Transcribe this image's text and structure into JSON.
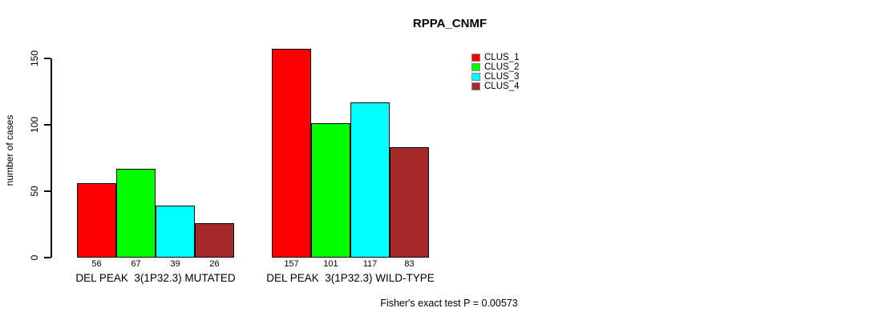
{
  "chart_data": {
    "type": "bar",
    "title": "RPPA_CNMF",
    "ylabel": "number of cases",
    "xlabel": "",
    "yticks": [
      0,
      50,
      100,
      150
    ],
    "ylim": [
      0,
      157
    ],
    "grid": false,
    "legend_position": "top-right",
    "categories": [
      "DEL PEAK  3(1P32.3) MUTATED",
      "DEL PEAK  3(1P32.3) WILD-TYPE"
    ],
    "series": [
      {
        "name": "CLUS_1",
        "color": "#ff0000",
        "values": [
          56,
          157
        ]
      },
      {
        "name": "CLUS_2",
        "color": "#00ff00",
        "values": [
          67,
          101
        ]
      },
      {
        "name": "CLUS_3",
        "color": "#00ffff",
        "values": [
          39,
          117
        ]
      },
      {
        "name": "CLUS_4",
        "color": "#a52a2a",
        "values": [
          26,
          83
        ]
      }
    ],
    "annotation": "Fisher's exact test P = 0.00573"
  }
}
